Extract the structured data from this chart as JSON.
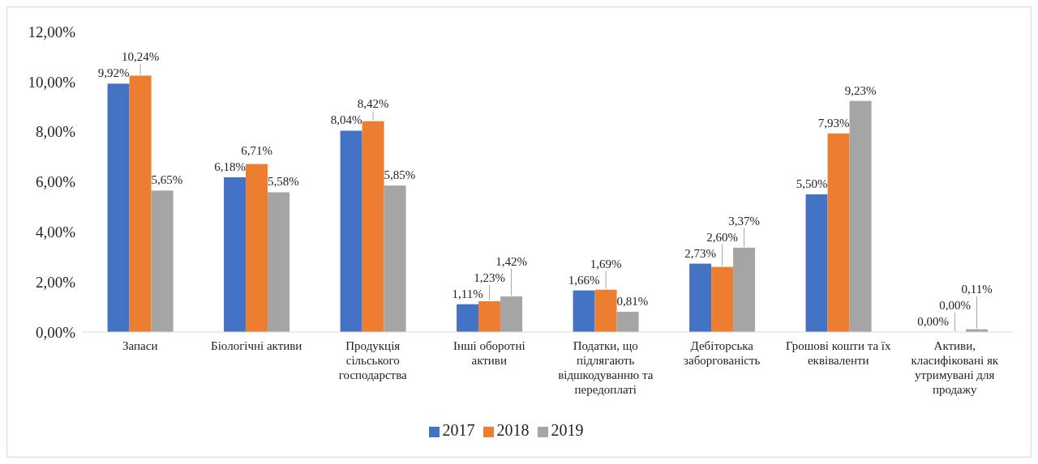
{
  "chart_data": {
    "type": "bar",
    "categories": [
      "Запаси",
      "Біологічні активи",
      "Продукція сільського господарства",
      "Інші оборотні активи",
      "Податки, що підлягають відшкодуванню та передоплаті",
      "Дебіторська заборгованість",
      "Грошові кошти та їх еквіваленти",
      "Активи, класифіковані як утримувані для продажу"
    ],
    "series": [
      {
        "name": "2017",
        "color": "#4472c4",
        "values": [
          9.92,
          6.18,
          8.04,
          1.11,
          1.66,
          2.73,
          5.5,
          0
        ],
        "value_labels": [
          "9,92%",
          "6,18%",
          "8,04%",
          "1,11%",
          "1,66%",
          "2,73%",
          "5,50%",
          "0,00%"
        ]
      },
      {
        "name": "2018",
        "color": "#ed7d31",
        "values": [
          10.24,
          6.71,
          8.42,
          1.23,
          1.69,
          2.6,
          7.93,
          0
        ],
        "value_labels": [
          "10,24%",
          "6,71%",
          "8,42%",
          "1,23%",
          "1,69%",
          "2,60%",
          "7,93%",
          "0,00%"
        ]
      },
      {
        "name": "2019",
        "color": "#a5a5a5",
        "values": [
          5.65,
          5.58,
          5.85,
          1.42,
          0.81,
          3.37,
          9.23,
          0.11
        ],
        "value_labels": [
          "5,65%",
          "5,58%",
          "5,85%",
          "1,42%",
          "0,81%",
          "3,37%",
          "9,23%",
          "0,11%"
        ]
      }
    ],
    "ylim": [
      0,
      12
    ],
    "yticks": [
      {
        "value": 0,
        "label": "0,00%"
      },
      {
        "value": 2,
        "label": "2,00%"
      },
      {
        "value": 4,
        "label": "4,00%"
      },
      {
        "value": 6,
        "label": "6,00%"
      },
      {
        "value": 8,
        "label": "8,00%"
      },
      {
        "value": 10,
        "label": "10,00%"
      },
      {
        "value": 12,
        "label": "12,00%"
      }
    ],
    "grid": false,
    "legend": "bottom"
  }
}
